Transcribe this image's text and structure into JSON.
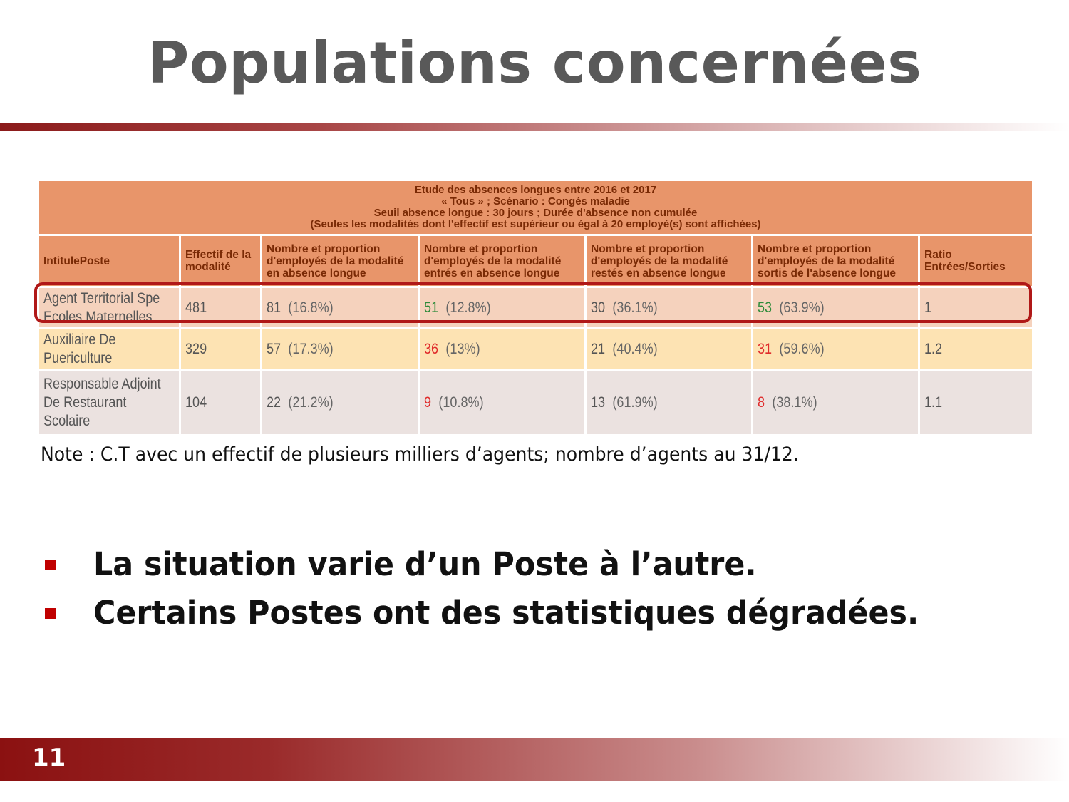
{
  "slide": {
    "title": "Populations concernées",
    "page_number": "11"
  },
  "table": {
    "caption": [
      "Etude des absences longues entre 2016 et 2017",
      "« Tous » ; Scénario : Congés maladie",
      "Seuil absence longue : 30 jours ; Durée d'absence non cumulée",
      "(Seules les modalités dont l'effectif est supérieur ou égal à 20 employé(s) sont affichées)"
    ],
    "headers": [
      "IntitulePoste",
      "Effectif de la modalité",
      "Nombre et proportion d'employés de la modalité en absence longue",
      "Nombre et proportion d'employés de la modalité entrés en absence longue",
      "Nombre et proportion d'employés de la modalité restés en absence longue",
      "Nombre et proportion d'employés de la modalité sortis de l'absence longue",
      "Ratio Entrées/Sorties"
    ],
    "rows": [
      {
        "poste": [
          "Agent Territorial Spe",
          "Ecoles Maternelles"
        ],
        "effectif": "481",
        "absence": {
          "n": "81",
          "p": "(16.8%)"
        },
        "entres": {
          "n": "51",
          "p": "(12.8%)",
          "color": "#2e8b3a"
        },
        "restes": {
          "n": "30",
          "p": "(36.1%)"
        },
        "sortis": {
          "n": "53",
          "p": "(63.9%)",
          "color": "#2e8b3a"
        },
        "ratio": "1",
        "highlighted": true
      },
      {
        "poste": [
          "Auxiliaire De",
          "Puericulture"
        ],
        "effectif": "329",
        "absence": {
          "n": "57",
          "p": "(17.3%)"
        },
        "entres": {
          "n": "36",
          "p": "(13%)",
          "color": "#e02b2b"
        },
        "restes": {
          "n": "21",
          "p": "(40.4%)"
        },
        "sortis": {
          "n": "31",
          "p": "(59.6%)",
          "color": "#e02b2b"
        },
        "ratio": "1.2"
      },
      {
        "poste": [
          "Responsable Adjoint",
          "De Restaurant",
          "Scolaire"
        ],
        "effectif": "104",
        "absence": {
          "n": "22",
          "p": "(21.2%)"
        },
        "entres": {
          "n": "9",
          "p": "(10.8%)",
          "color": "#e02b2b"
        },
        "restes": {
          "n": "13",
          "p": "(61.9%)"
        },
        "sortis": {
          "n": "8",
          "p": "(38.1%)",
          "color": "#e02b2b"
        },
        "ratio": "1.1"
      }
    ]
  },
  "note": "Note : C.T avec un effectif  de plusieurs milliers d’agents; nombre d’agents au 31/12.",
  "bullets": [
    "La situation varie d’un Poste à l’autre.",
    "Certains Postes ont des statistiques dégradées."
  ],
  "colors": {
    "accent_red": "#c00000",
    "header_orange": "#e8956a",
    "positive_green": "#2e8b3a",
    "negative_red": "#e02b2b"
  }
}
